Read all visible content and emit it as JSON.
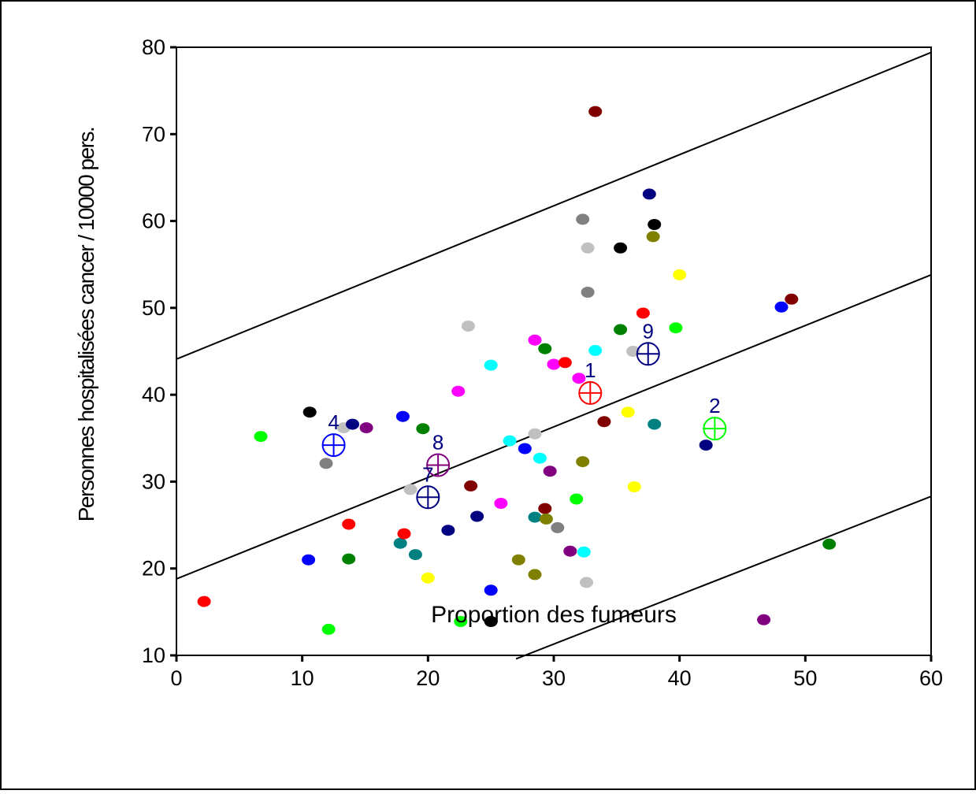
{
  "chart_data": {
    "type": "scatter",
    "xlabel": "Proportion des fumeurs",
    "ylabel": "Personnes hospitalisées cancer / 10000 pers.",
    "xlim": [
      0,
      60
    ],
    "ylim": [
      10,
      80
    ],
    "x_ticks": [
      "0",
      "10",
      "20",
      "30",
      "40",
      "50",
      "60"
    ],
    "x_tick_values": [
      0,
      10,
      20,
      30,
      40,
      50,
      60
    ],
    "y_ticks": [
      "10",
      "20",
      "30",
      "40",
      "50",
      "60",
      "70",
      "80"
    ],
    "y_tick_values": [
      10,
      20,
      30,
      40,
      50,
      60,
      70,
      80
    ],
    "grid": false,
    "lines": {
      "regression": {
        "x": [
          0,
          60
        ],
        "y": [
          18.8,
          53.8
        ]
      },
      "upper_band": {
        "x": [
          0,
          60
        ],
        "y": [
          44.1,
          79.4
        ]
      },
      "lower_band": {
        "x": [
          27,
          60
        ],
        "y": [
          9.6,
          28.3
        ]
      }
    },
    "points": [
      {
        "x": 2.2,
        "y": 16.2,
        "color": "#ff0000"
      },
      {
        "x": 6.7,
        "y": 35.2,
        "color": "#00ff00"
      },
      {
        "x": 10.5,
        "y": 21.0,
        "color": "#0000ff"
      },
      {
        "x": 10.6,
        "y": 38.0,
        "color": "#000000"
      },
      {
        "x": 11.9,
        "y": 32.1,
        "color": "#808080"
      },
      {
        "x": 12.1,
        "y": 13.0,
        "color": "#00ff00"
      },
      {
        "x": 13.3,
        "y": 36.2,
        "color": "#c0c0c0"
      },
      {
        "x": 13.7,
        "y": 25.1,
        "color": "#ff0000"
      },
      {
        "x": 13.7,
        "y": 21.1,
        "color": "#008000"
      },
      {
        "x": 14.0,
        "y": 36.6,
        "color": "#000080"
      },
      {
        "x": 15.1,
        "y": 36.2,
        "color": "#800080"
      },
      {
        "x": 17.8,
        "y": 22.9,
        "color": "#008080"
      },
      {
        "x": 18.1,
        "y": 24.0,
        "color": "#ff0000"
      },
      {
        "x": 18.0,
        "y": 37.5,
        "color": "#0000ff"
      },
      {
        "x": 18.6,
        "y": 29.1,
        "color": "#c0c0c0"
      },
      {
        "x": 19.0,
        "y": 21.6,
        "color": "#008080"
      },
      {
        "x": 19.6,
        "y": 36.1,
        "color": "#008000"
      },
      {
        "x": 20.0,
        "y": 18.9,
        "color": "#ffff00"
      },
      {
        "x": 21.6,
        "y": 24.4,
        "color": "#000080"
      },
      {
        "x": 22.4,
        "y": 40.4,
        "color": "#ff00ff"
      },
      {
        "x": 22.6,
        "y": 13.9,
        "color": "#00ff00"
      },
      {
        "x": 23.2,
        "y": 47.9,
        "color": "#c0c0c0"
      },
      {
        "x": 23.4,
        "y": 29.5,
        "color": "#800000"
      },
      {
        "x": 23.9,
        "y": 26.0,
        "color": "#000080"
      },
      {
        "x": 25.0,
        "y": 43.4,
        "color": "#00ffff"
      },
      {
        "x": 25.0,
        "y": 17.5,
        "color": "#0000ff"
      },
      {
        "x": 25.0,
        "y": 13.9,
        "color": "#000000"
      },
      {
        "x": 25.8,
        "y": 27.5,
        "color": "#ff00ff"
      },
      {
        "x": 26.5,
        "y": 34.7,
        "color": "#00ffff"
      },
      {
        "x": 27.2,
        "y": 21.0,
        "color": "#808000"
      },
      {
        "x": 27.7,
        "y": 33.8,
        "color": "#0000ff"
      },
      {
        "x": 28.5,
        "y": 46.3,
        "color": "#ff00ff"
      },
      {
        "x": 28.5,
        "y": 35.5,
        "color": "#c0c0c0"
      },
      {
        "x": 28.5,
        "y": 25.9,
        "color": "#008080"
      },
      {
        "x": 28.5,
        "y": 19.3,
        "color": "#808000"
      },
      {
        "x": 28.9,
        "y": 32.7,
        "color": "#00ffff"
      },
      {
        "x": 29.3,
        "y": 45.3,
        "color": "#008000"
      },
      {
        "x": 29.3,
        "y": 26.9,
        "color": "#800000"
      },
      {
        "x": 29.4,
        "y": 25.7,
        "color": "#808000"
      },
      {
        "x": 29.7,
        "y": 31.2,
        "color": "#800080"
      },
      {
        "x": 30.0,
        "y": 43.5,
        "color": "#ff00ff"
      },
      {
        "x": 30.3,
        "y": 24.7,
        "color": "#808080"
      },
      {
        "x": 30.9,
        "y": 43.7,
        "color": "#ff0000"
      },
      {
        "x": 31.3,
        "y": 22.0,
        "color": "#800080"
      },
      {
        "x": 31.8,
        "y": 28.0,
        "color": "#00ff00"
      },
      {
        "x": 32.0,
        "y": 41.9,
        "color": "#ff00ff"
      },
      {
        "x": 32.3,
        "y": 60.2,
        "color": "#808080"
      },
      {
        "x": 32.3,
        "y": 32.3,
        "color": "#808000"
      },
      {
        "x": 32.4,
        "y": 21.9,
        "color": "#00ffff"
      },
      {
        "x": 32.6,
        "y": 18.4,
        "color": "#c0c0c0"
      },
      {
        "x": 32.7,
        "y": 56.9,
        "color": "#c0c0c0"
      },
      {
        "x": 32.7,
        "y": 51.8,
        "color": "#808080"
      },
      {
        "x": 33.3,
        "y": 72.6,
        "color": "#800000"
      },
      {
        "x": 33.3,
        "y": 45.1,
        "color": "#00ffff"
      },
      {
        "x": 34.0,
        "y": 36.9,
        "color": "#800000"
      },
      {
        "x": 35.3,
        "y": 56.9,
        "color": "#000000"
      },
      {
        "x": 35.3,
        "y": 47.5,
        "color": "#008000"
      },
      {
        "x": 35.9,
        "y": 38.0,
        "color": "#ffff00"
      },
      {
        "x": 36.3,
        "y": 45.0,
        "color": "#c0c0c0"
      },
      {
        "x": 36.4,
        "y": 29.4,
        "color": "#ffff00"
      },
      {
        "x": 37.1,
        "y": 49.4,
        "color": "#ff0000"
      },
      {
        "x": 37.6,
        "y": 63.1,
        "color": "#000080"
      },
      {
        "x": 37.9,
        "y": 58.2,
        "color": "#808000"
      },
      {
        "x": 38.0,
        "y": 59.6,
        "color": "#000000"
      },
      {
        "x": 38.0,
        "y": 36.6,
        "color": "#008080"
      },
      {
        "x": 39.7,
        "y": 47.7,
        "color": "#00ff00"
      },
      {
        "x": 40.0,
        "y": 53.8,
        "color": "#ffff00"
      },
      {
        "x": 42.1,
        "y": 34.2,
        "color": "#000080"
      },
      {
        "x": 46.7,
        "y": 14.1,
        "color": "#800080"
      },
      {
        "x": 48.1,
        "y": 50.1,
        "color": "#0000ff"
      },
      {
        "x": 48.9,
        "y": 51.0,
        "color": "#800000"
      },
      {
        "x": 51.9,
        "y": 22.8,
        "color": "#008000"
      }
    ],
    "highlighted_points": [
      {
        "label": "4",
        "x": 12.5,
        "y": 34.2,
        "color": "#0000ff"
      },
      {
        "label": "8",
        "x": 20.8,
        "y": 31.9,
        "color": "#800080"
      },
      {
        "label": "7",
        "x": 20.0,
        "y": 28.2,
        "color": "#000080"
      },
      {
        "label": "1",
        "x": 32.9,
        "y": 40.2,
        "color": "#ff0000"
      },
      {
        "label": "9",
        "x": 37.5,
        "y": 44.7,
        "color": "#000080"
      },
      {
        "label": "2",
        "x": 42.8,
        "y": 36.1,
        "color": "#00ff00"
      }
    ]
  }
}
